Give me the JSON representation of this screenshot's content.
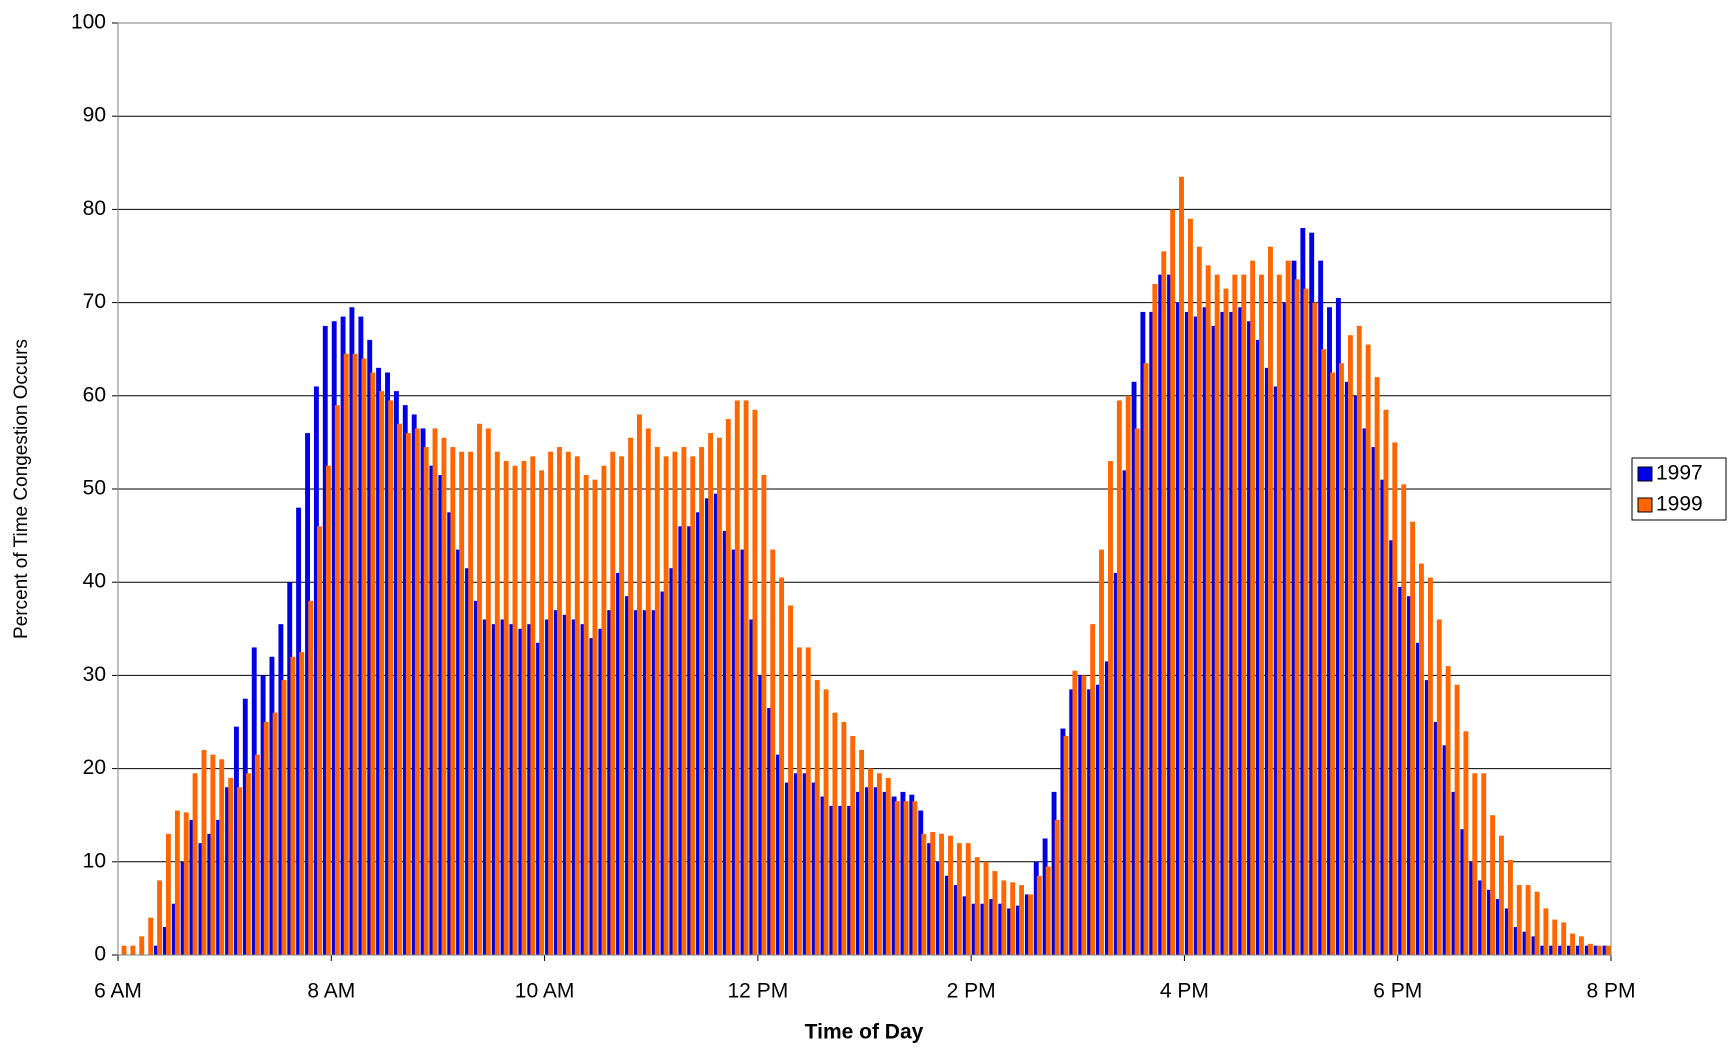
{
  "chart_data": {
    "type": "bar",
    "y_label": "Percent of Time Congestion Occurs",
    "x_label": "Time of Day",
    "xlim": [
      6,
      20
    ],
    "xticks": [
      {
        "value": 6,
        "label": "6 AM"
      },
      {
        "value": 8,
        "label": "8 AM"
      },
      {
        "value": 10,
        "label": "10 AM"
      },
      {
        "value": 12,
        "label": "12 PM"
      },
      {
        "value": 14,
        "label": "2 PM"
      },
      {
        "value": 16,
        "label": "4 PM"
      },
      {
        "value": 18,
        "label": "6 PM"
      },
      {
        "value": 20,
        "label": "8 PM"
      }
    ],
    "ylim": [
      0,
      100
    ],
    "yticks": [
      0,
      10,
      20,
      30,
      40,
      50,
      60,
      70,
      80,
      90,
      100
    ],
    "grid": true,
    "legend": "right",
    "x": [
      6.042,
      6.125,
      6.208,
      6.292,
      6.375,
      6.458,
      6.542,
      6.625,
      6.708,
      6.792,
      6.875,
      6.958,
      7.042,
      7.125,
      7.208,
      7.292,
      7.375,
      7.458,
      7.542,
      7.625,
      7.708,
      7.792,
      7.875,
      7.958,
      8.042,
      8.125,
      8.208,
      8.292,
      8.375,
      8.458,
      8.542,
      8.625,
      8.708,
      8.792,
      8.875,
      8.958,
      9.042,
      9.125,
      9.208,
      9.292,
      9.375,
      9.458,
      9.542,
      9.625,
      9.708,
      9.792,
      9.875,
      9.958,
      10.042,
      10.125,
      10.208,
      10.292,
      10.375,
      10.458,
      10.542,
      10.625,
      10.708,
      10.792,
      10.875,
      10.958,
      11.042,
      11.125,
      11.208,
      11.292,
      11.375,
      11.458,
      11.542,
      11.625,
      11.708,
      11.792,
      11.875,
      11.958,
      12.042,
      12.125,
      12.208,
      12.292,
      12.375,
      12.458,
      12.542,
      12.625,
      12.708,
      12.792,
      12.875,
      12.958,
      13.042,
      13.125,
      13.208,
      13.292,
      13.375,
      13.458,
      13.542,
      13.625,
      13.708,
      13.792,
      13.875,
      13.958,
      14.042,
      14.125,
      14.208,
      14.292,
      14.375,
      14.458,
      14.542,
      14.625,
      14.708,
      14.792,
      14.875,
      14.958,
      15.042,
      15.125,
      15.208,
      15.292,
      15.375,
      15.458,
      15.542,
      15.625,
      15.708,
      15.792,
      15.875,
      15.958,
      16.042,
      16.125,
      16.208,
      16.292,
      16.375,
      16.458,
      16.542,
      16.625,
      16.708,
      16.792,
      16.875,
      16.958,
      17.042,
      17.125,
      17.208,
      17.292,
      17.375,
      17.458,
      17.542,
      17.625,
      17.708,
      17.792,
      17.875,
      17.958,
      18.042,
      18.125,
      18.208,
      18.292,
      18.375,
      18.458,
      18.542,
      18.625,
      18.708,
      18.792,
      18.875,
      18.958,
      19.042,
      19.125,
      19.208,
      19.292,
      19.375,
      19.458,
      19.542,
      19.625,
      19.708,
      19.792,
      19.875,
      19.958
    ],
    "series": [
      {
        "name": "1997",
        "color": "#0000e6",
        "values": [
          0,
          0,
          0,
          0,
          1,
          3,
          5.5,
          10,
          14.5,
          12,
          13,
          14.5,
          18,
          24.5,
          27.5,
          33,
          30,
          32,
          35.5,
          40,
          48,
          56,
          61,
          67.5,
          68,
          68.5,
          69.5,
          68.5,
          66,
          63,
          62.5,
          60.5,
          59,
          58,
          56.5,
          52.5,
          51.5,
          47.5,
          43.5,
          41.5,
          38,
          36,
          35.5,
          36,
          35.5,
          35,
          35.5,
          33.5,
          36,
          37,
          36.5,
          36,
          35.5,
          34,
          35,
          37,
          41,
          38.5,
          37,
          37,
          37,
          39,
          41.5,
          46,
          46,
          47.5,
          49,
          49.5,
          45.5,
          43.5,
          43.5,
          36,
          30,
          26.5,
          21.5,
          18.5,
          19.5,
          19.5,
          18.5,
          17,
          16,
          16,
          16,
          17.5,
          18,
          18,
          17.5,
          17,
          17.5,
          17.2,
          15.5,
          12,
          10,
          8.5,
          7.5,
          6.3,
          5.5,
          5.5,
          6,
          5.5,
          5,
          5.3,
          6.5,
          10,
          12.5,
          17.5,
          24.3,
          28.5,
          30,
          28.5,
          29,
          31.5,
          41,
          52,
          61.5,
          69,
          69,
          73,
          73,
          70,
          69,
          68.5,
          69.5,
          67.5,
          69,
          69,
          69.5,
          68,
          66,
          63,
          61,
          70,
          74.5,
          78,
          77.5,
          74.5,
          69.5,
          70.5,
          61.5,
          60,
          56.5,
          54.5,
          51,
          44.5,
          39.5,
          38.5,
          33.5,
          29.5,
          25,
          22.5,
          17.5,
          13.5,
          10,
          8,
          7,
          6,
          5,
          3,
          2.5,
          2,
          1,
          1,
          1,
          1,
          1,
          1,
          1,
          1
        ]
      },
      {
        "name": "1999",
        "color": "#ff6600",
        "values": [
          1,
          1,
          2,
          4,
          8,
          13,
          15.5,
          15.3,
          19.5,
          22,
          21.5,
          21,
          19,
          18,
          19.5,
          21.5,
          25,
          26,
          29.5,
          32,
          32.5,
          38,
          46,
          52.5,
          59,
          64.5,
          64.5,
          64,
          62.5,
          60.5,
          59.5,
          57,
          56,
          56.5,
          54.5,
          56.5,
          55.5,
          54.5,
          54,
          54,
          57,
          56.5,
          54,
          53,
          52.5,
          53,
          53.5,
          52,
          54,
          54.5,
          54,
          53.5,
          51.5,
          51,
          52.5,
          54,
          53.5,
          55.5,
          58,
          56.5,
          54.5,
          53.5,
          54,
          54.5,
          53.5,
          54.5,
          56,
          55.5,
          57.5,
          59.5,
          59.5,
          58.5,
          51.5,
          43.5,
          40.5,
          37.5,
          33,
          33,
          29.5,
          28.5,
          26,
          25,
          23.5,
          22,
          20,
          19.5,
          19,
          16.5,
          16.5,
          16.5,
          13,
          13.2,
          13,
          12.8,
          12,
          12,
          10.5,
          10,
          9,
          8,
          7.8,
          7.5,
          6.5,
          8.5,
          9.5,
          14.5,
          23.5,
          30.5,
          30,
          35.5,
          43.5,
          53,
          59.5,
          60,
          56.5,
          63.5,
          72,
          75.5,
          80,
          83.5,
          79,
          76,
          74,
          73,
          71.5,
          73,
          73,
          74.5,
          73,
          76,
          73,
          74.5,
          72.5,
          71.5,
          70,
          65,
          62.5,
          63.5,
          66.5,
          67.5,
          65.5,
          62,
          58.5,
          55,
          50.5,
          46.5,
          42,
          40.5,
          36,
          31,
          29,
          24,
          19.5,
          19.5,
          15,
          12.8,
          10.2,
          7.5,
          7.5,
          6.8,
          5,
          3.8,
          3.5,
          2.3,
          2,
          1.2,
          1,
          1
        ]
      }
    ]
  }
}
